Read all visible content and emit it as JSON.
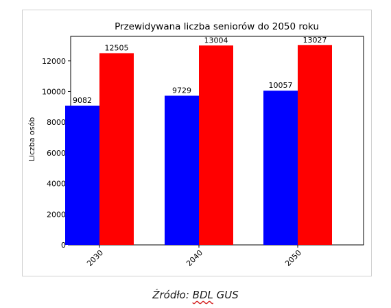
{
  "chart_data": {
    "type": "bar",
    "title": "Przewidywana liczba seniorów do 2050 roku",
    "xlabel": "",
    "ylabel": "Liczba osób",
    "categories": [
      "2030",
      "2040",
      "2050"
    ],
    "series": [
      {
        "values": [
          9082,
          9729,
          10057
        ],
        "color": "#0000ff"
      },
      {
        "values": [
          12505,
          13004,
          13027
        ],
        "color": "#ff0000"
      }
    ],
    "ylim": [
      0,
      13600
    ],
    "yticks": [
      0,
      2000,
      4000,
      6000,
      8000,
      10000,
      12000
    ],
    "ytick_labels": [
      "0",
      "2000",
      "4000",
      "6000",
      "8000",
      "10000",
      "12000"
    ],
    "grid": false,
    "xtick_rotation_deg": 45
  },
  "caption": {
    "prefix": "Źródło: ",
    "underlined": "BDL",
    "suffix": " GUS"
  }
}
